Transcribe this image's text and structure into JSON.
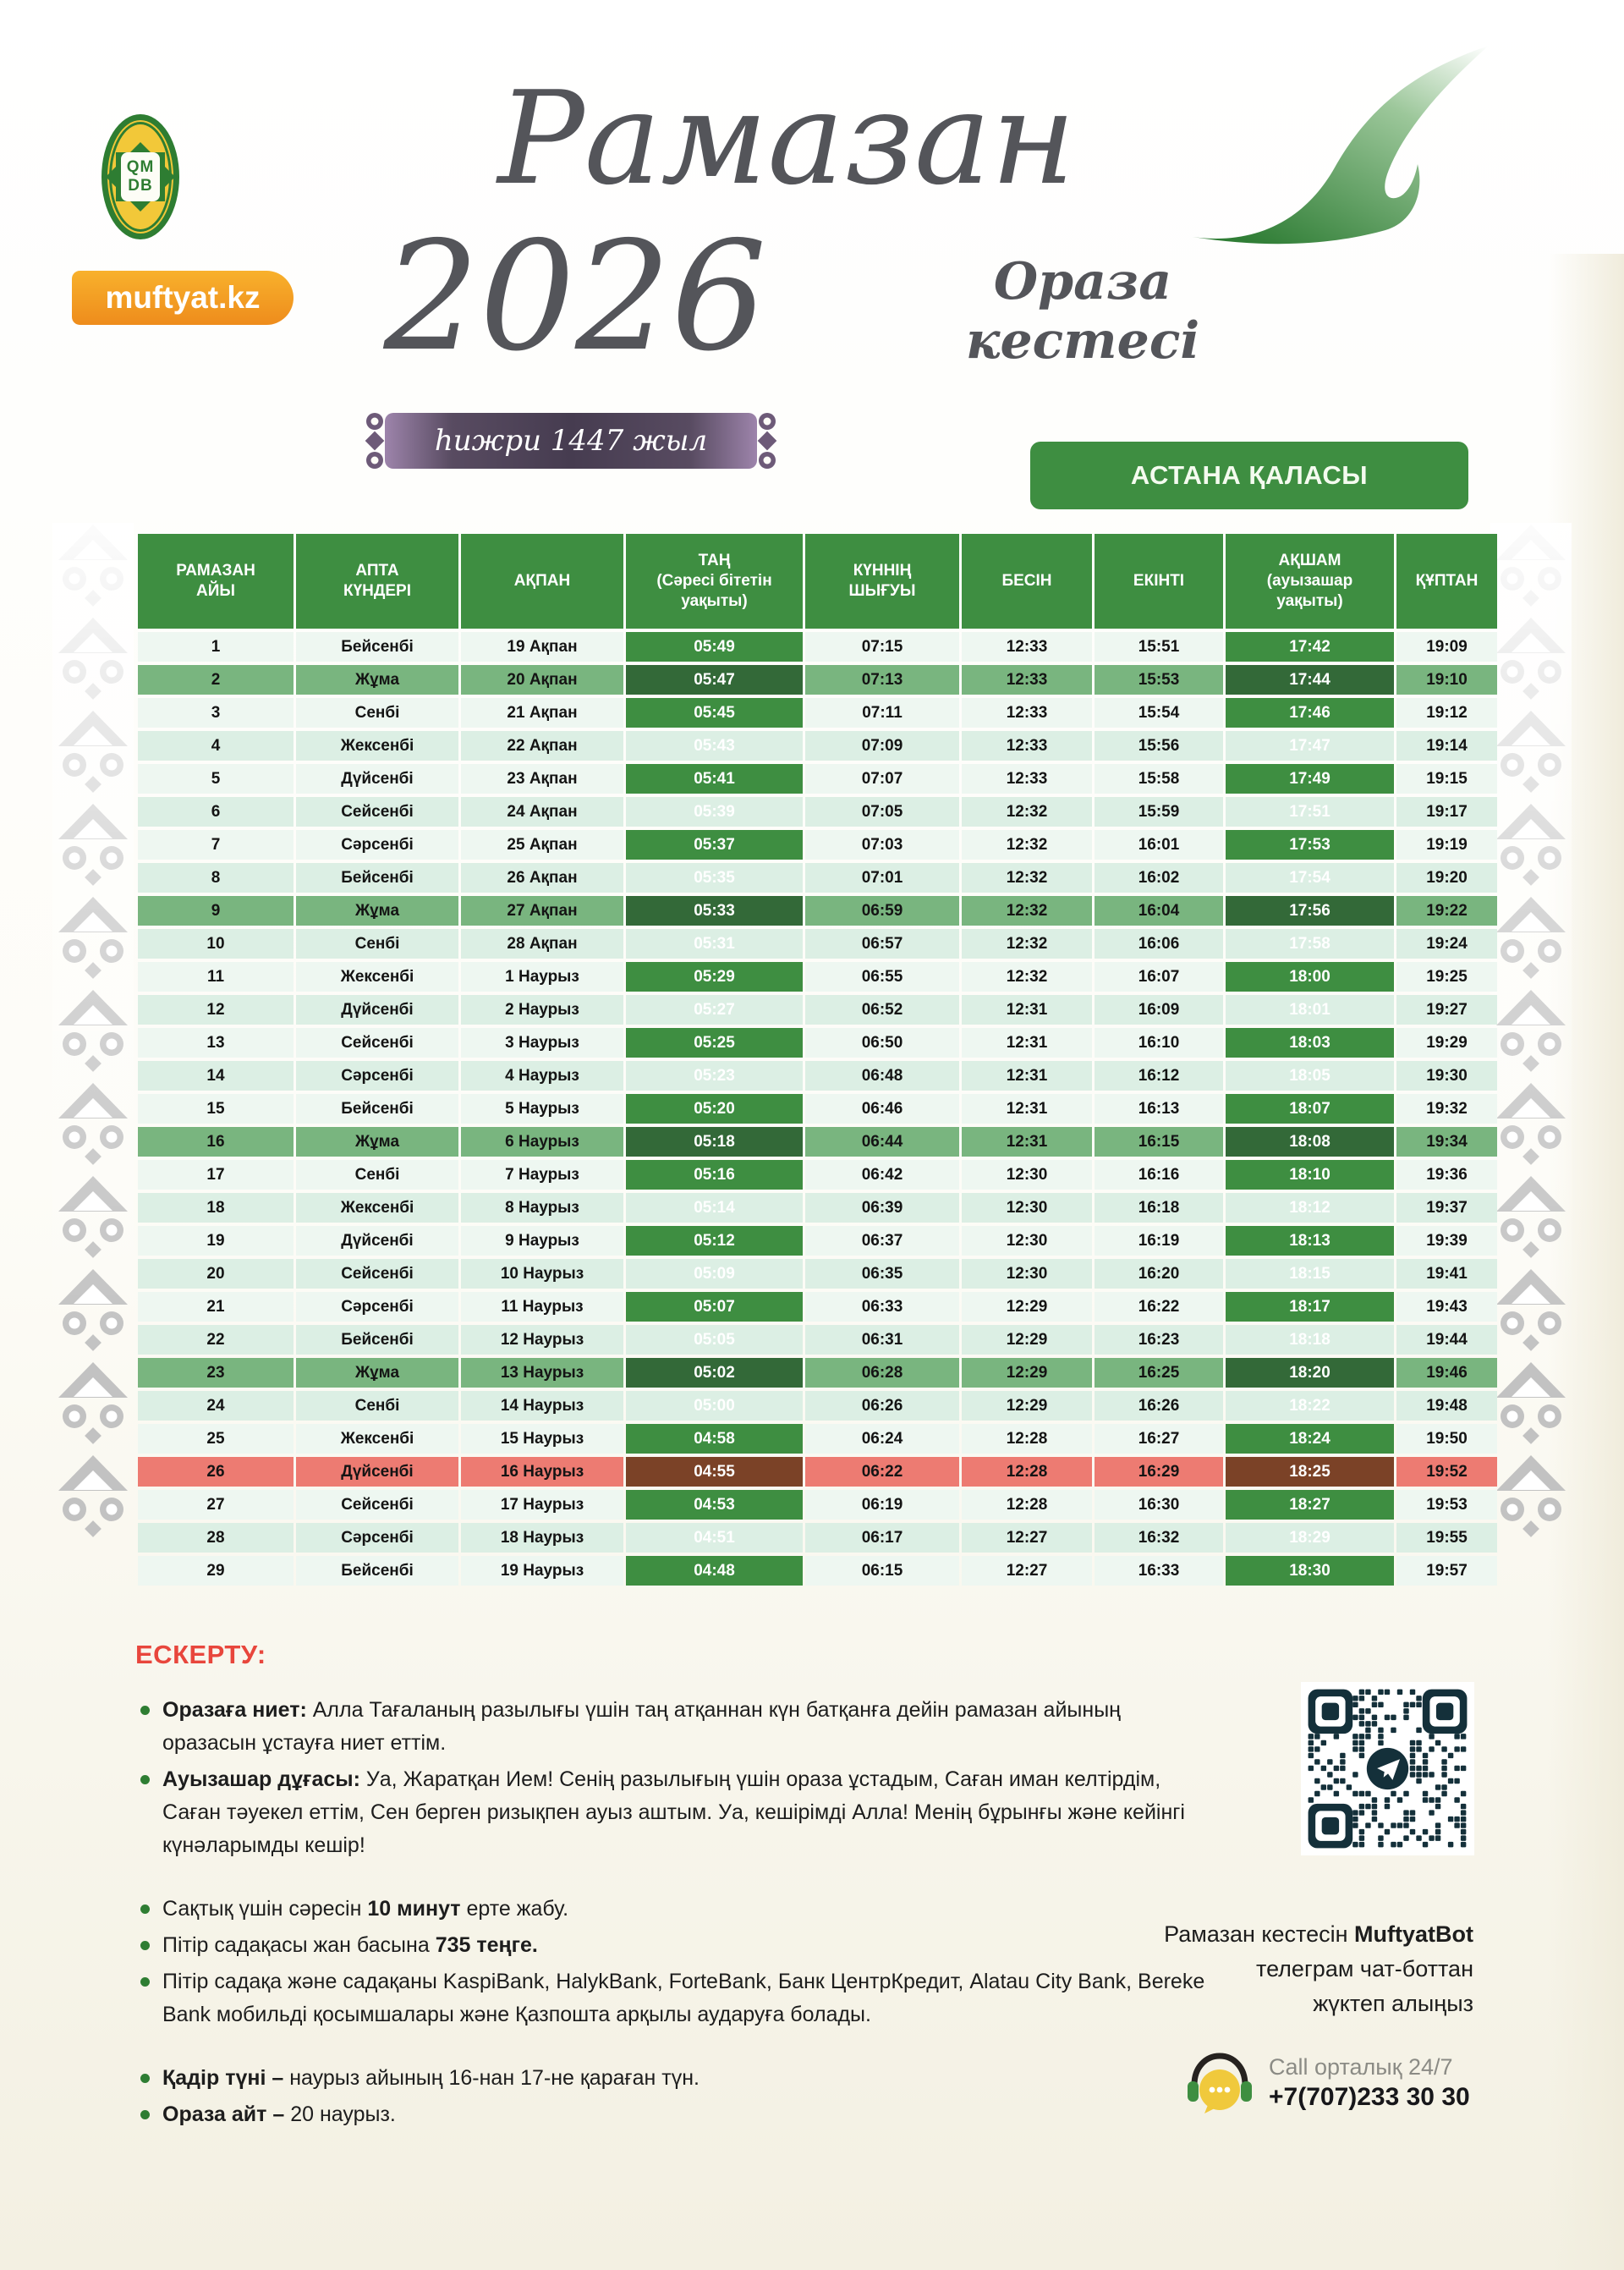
{
  "header": {
    "logo_line1": "QM",
    "logo_line2": "DB",
    "site_badge": "muftyat.kz",
    "title_script": "Рамазан",
    "year": "2026",
    "subtitle_script": "Ораза кестесі",
    "hijri_badge": "һижри 1447 жыл",
    "city_button": "АСТАНА ҚАЛАСЫ"
  },
  "table": {
    "columns": [
      "РАМАЗАН\nАЙЫ",
      "АПТА\nКҮНДЕРІ",
      "АҚПАН",
      "ТАҢ\n(Сәресі бітетін\nуақыты)",
      "КҮННІҢ\nШЫҒУЫ",
      "БЕСІН",
      "ЕКІНТІ",
      "АҚШАМ\n(ауызашар\nуақыты)",
      "ҚҰПТАН"
    ],
    "rows": [
      {
        "day": "1",
        "weekday": "Бейсенбі",
        "date": "19 Ақпан",
        "tan": "05:49",
        "sunrise": "07:15",
        "besin": "12:33",
        "ekinti": "15:51",
        "aqsham": "17:42",
        "quptan": "19:09",
        "hl": ""
      },
      {
        "day": "2",
        "weekday": "Жұма",
        "date": "20 Ақпан",
        "tan": "05:47",
        "sunrise": "07:13",
        "besin": "12:33",
        "ekinti": "15:53",
        "aqsham": "17:44",
        "quptan": "19:10",
        "hl": "jumma"
      },
      {
        "day": "3",
        "weekday": "Сенбі",
        "date": "21 Ақпан",
        "tan": "05:45",
        "sunrise": "07:11",
        "besin": "12:33",
        "ekinti": "15:54",
        "aqsham": "17:46",
        "quptan": "19:12",
        "hl": ""
      },
      {
        "day": "4",
        "weekday": "Жексенбі",
        "date": "22 Ақпан",
        "tan": "05:43",
        "sunrise": "07:09",
        "besin": "12:33",
        "ekinti": "15:56",
        "aqsham": "17:47",
        "quptan": "19:14",
        "hl": ""
      },
      {
        "day": "5",
        "weekday": "Дүйсенбі",
        "date": "23 Ақпан",
        "tan": "05:41",
        "sunrise": "07:07",
        "besin": "12:33",
        "ekinti": "15:58",
        "aqsham": "17:49",
        "quptan": "19:15",
        "hl": ""
      },
      {
        "day": "6",
        "weekday": "Сейсенбі",
        "date": "24 Ақпан",
        "tan": "05:39",
        "sunrise": "07:05",
        "besin": "12:32",
        "ekinti": "15:59",
        "aqsham": "17:51",
        "quptan": "19:17",
        "hl": ""
      },
      {
        "day": "7",
        "weekday": "Сәрсенбі",
        "date": "25 Ақпан",
        "tan": "05:37",
        "sunrise": "07:03",
        "besin": "12:32",
        "ekinti": "16:01",
        "aqsham": "17:53",
        "quptan": "19:19",
        "hl": ""
      },
      {
        "day": "8",
        "weekday": "Бейсенбі",
        "date": "26 Ақпан",
        "tan": "05:35",
        "sunrise": "07:01",
        "besin": "12:32",
        "ekinti": "16:02",
        "aqsham": "17:54",
        "quptan": "19:20",
        "hl": ""
      },
      {
        "day": "9",
        "weekday": "Жұма",
        "date": "27 Ақпан",
        "tan": "05:33",
        "sunrise": "06:59",
        "besin": "12:32",
        "ekinti": "16:04",
        "aqsham": "17:56",
        "quptan": "19:22",
        "hl": "jumma"
      },
      {
        "day": "10",
        "weekday": "Сенбі",
        "date": "28 Ақпан",
        "tan": "05:31",
        "sunrise": "06:57",
        "besin": "12:32",
        "ekinti": "16:06",
        "aqsham": "17:58",
        "quptan": "19:24",
        "hl": ""
      },
      {
        "day": "11",
        "weekday": "Жексенбі",
        "date": "1 Наурыз",
        "tan": "05:29",
        "sunrise": "06:55",
        "besin": "12:32",
        "ekinti": "16:07",
        "aqsham": "18:00",
        "quptan": "19:25",
        "hl": ""
      },
      {
        "day": "12",
        "weekday": "Дүйсенбі",
        "date": "2 Наурыз",
        "tan": "05:27",
        "sunrise": "06:52",
        "besin": "12:31",
        "ekinti": "16:09",
        "aqsham": "18:01",
        "quptan": "19:27",
        "hl": ""
      },
      {
        "day": "13",
        "weekday": "Сейсенбі",
        "date": "3 Наурыз",
        "tan": "05:25",
        "sunrise": "06:50",
        "besin": "12:31",
        "ekinti": "16:10",
        "aqsham": "18:03",
        "quptan": "19:29",
        "hl": ""
      },
      {
        "day": "14",
        "weekday": "Сәрсенбі",
        "date": "4 Наурыз",
        "tan": "05:23",
        "sunrise": "06:48",
        "besin": "12:31",
        "ekinti": "16:12",
        "aqsham": "18:05",
        "quptan": "19:30",
        "hl": ""
      },
      {
        "day": "15",
        "weekday": "Бейсенбі",
        "date": "5 Наурыз",
        "tan": "05:20",
        "sunrise": "06:46",
        "besin": "12:31",
        "ekinti": "16:13",
        "aqsham": "18:07",
        "quptan": "19:32",
        "hl": ""
      },
      {
        "day": "16",
        "weekday": "Жұма",
        "date": "6 Наурыз",
        "tan": "05:18",
        "sunrise": "06:44",
        "besin": "12:31",
        "ekinti": "16:15",
        "aqsham": "18:08",
        "quptan": "19:34",
        "hl": "jumma"
      },
      {
        "day": "17",
        "weekday": "Сенбі",
        "date": "7 Наурыз",
        "tan": "05:16",
        "sunrise": "06:42",
        "besin": "12:30",
        "ekinti": "16:16",
        "aqsham": "18:10",
        "quptan": "19:36",
        "hl": ""
      },
      {
        "day": "18",
        "weekday": "Жексенбі",
        "date": "8 Наурыз",
        "tan": "05:14",
        "sunrise": "06:39",
        "besin": "12:30",
        "ekinti": "16:18",
        "aqsham": "18:12",
        "quptan": "19:37",
        "hl": ""
      },
      {
        "day": "19",
        "weekday": "Дүйсенбі",
        "date": "9 Наурыз",
        "tan": "05:12",
        "sunrise": "06:37",
        "besin": "12:30",
        "ekinti": "16:19",
        "aqsham": "18:13",
        "quptan": "19:39",
        "hl": ""
      },
      {
        "day": "20",
        "weekday": "Сейсенбі",
        "date": "10 Наурыз",
        "tan": "05:09",
        "sunrise": "06:35",
        "besin": "12:30",
        "ekinti": "16:20",
        "aqsham": "18:15",
        "quptan": "19:41",
        "hl": ""
      },
      {
        "day": "21",
        "weekday": "Сәрсенбі",
        "date": "11 Наурыз",
        "tan": "05:07",
        "sunrise": "06:33",
        "besin": "12:29",
        "ekinti": "16:22",
        "aqsham": "18:17",
        "quptan": "19:43",
        "hl": ""
      },
      {
        "day": "22",
        "weekday": "Бейсенбі",
        "date": "12 Наурыз",
        "tan": "05:05",
        "sunrise": "06:31",
        "besin": "12:29",
        "ekinti": "16:23",
        "aqsham": "18:18",
        "quptan": "19:44",
        "hl": ""
      },
      {
        "day": "23",
        "weekday": "Жұма",
        "date": "13 Наурыз",
        "tan": "05:02",
        "sunrise": "06:28",
        "besin": "12:29",
        "ekinti": "16:25",
        "aqsham": "18:20",
        "quptan": "19:46",
        "hl": "jumma"
      },
      {
        "day": "24",
        "weekday": "Сенбі",
        "date": "14 Наурыз",
        "tan": "05:00",
        "sunrise": "06:26",
        "besin": "12:29",
        "ekinti": "16:26",
        "aqsham": "18:22",
        "quptan": "19:48",
        "hl": ""
      },
      {
        "day": "25",
        "weekday": "Жексенбі",
        "date": "15 Наурыз",
        "tan": "04:58",
        "sunrise": "06:24",
        "besin": "12:28",
        "ekinti": "16:27",
        "aqsham": "18:24",
        "quptan": "19:50",
        "hl": ""
      },
      {
        "day": "26",
        "weekday": "Дүйсенбі",
        "date": "16 Наурыз",
        "tan": "04:55",
        "sunrise": "06:22",
        "besin": "12:28",
        "ekinti": "16:29",
        "aqsham": "18:25",
        "quptan": "19:52",
        "hl": "qadir"
      },
      {
        "day": "27",
        "weekday": "Сейсенбі",
        "date": "17 Наурыз",
        "tan": "04:53",
        "sunrise": "06:19",
        "besin": "12:28",
        "ekinti": "16:30",
        "aqsham": "18:27",
        "quptan": "19:53",
        "hl": ""
      },
      {
        "day": "28",
        "weekday": "Сәрсенбі",
        "date": "18 Наурыз",
        "tan": "04:51",
        "sunrise": "06:17",
        "besin": "12:27",
        "ekinti": "16:32",
        "aqsham": "18:29",
        "quptan": "19:55",
        "hl": ""
      },
      {
        "day": "29",
        "weekday": "Бейсенбі",
        "date": "19 Наурыз",
        "tan": "04:48",
        "sunrise": "06:15",
        "besin": "12:27",
        "ekinti": "16:33",
        "aqsham": "18:30",
        "quptan": "19:57",
        "hl": ""
      }
    ]
  },
  "notes": {
    "heading": "ЕСКЕРТУ:",
    "items": [
      {
        "gap_before": false,
        "segments": [
          {
            "text": "Оразаға ниет: ",
            "bold": true
          },
          {
            "text": "Алла Тағаланың разылығы үшін таң атқаннан күн батқанға дейін рамазан айының оразасын ұстауға ниет еттім.",
            "bold": false
          }
        ]
      },
      {
        "gap_before": false,
        "segments": [
          {
            "text": "Ауызашар дұғасы: ",
            "bold": true
          },
          {
            "text": "Уа, Жаратқан Ием! Сенің разылығың үшін ораза ұстадым, Саған иман келтірдім, Саған тәуекел еттім, Сен берген ризықпен ауыз аштым. Уа, кешірімді Алла! Менің бұрынғы және кейінгі күнәларымды кешір!",
            "bold": false
          }
        ]
      },
      {
        "gap_before": true,
        "segments": [
          {
            "text": "Сақтық үшін сәресін ",
            "bold": false
          },
          {
            "text": "10 минут",
            "bold": true
          },
          {
            "text": " ерте жабу.",
            "bold": false
          }
        ]
      },
      {
        "gap_before": false,
        "segments": [
          {
            "text": "Пітір садақасы жан басына ",
            "bold": false
          },
          {
            "text": "735 теңге.",
            "bold": true
          }
        ]
      },
      {
        "gap_before": false,
        "segments": [
          {
            "text": "Пітір садақа және садақаны KaspiBank, HalykBank, ForteBank, Банк ЦентрКредит, Alatau City Bank, Bereke Bank мобильді қосымшалары және Қазпошта арқылы аударуға болады.",
            "bold": false
          }
        ]
      },
      {
        "gap_before": true,
        "segments": [
          {
            "text": "Қадір түні – ",
            "bold": true
          },
          {
            "text": "наурыз айының 16-нан 17-не қараған түн.",
            "bold": false
          }
        ]
      },
      {
        "gap_before": false,
        "segments": [
          {
            "text": "Ораза айт – ",
            "bold": true
          },
          {
            "text": "20 наурыз.",
            "bold": false
          }
        ]
      }
    ]
  },
  "qr_caption": {
    "lines": [
      [
        {
          "text": "Рамазан кестесін ",
          "bold": false
        },
        {
          "text": "MuftyatBot",
          "bold": true
        }
      ],
      [
        {
          "text": "телеграм чат-боттан",
          "bold": false
        }
      ],
      [
        {
          "text": "жүктеп алыңыз",
          "bold": false
        }
      ]
    ]
  },
  "call_center": {
    "label": "Call орталық 24/7",
    "phone": "+7(707)233 30 30"
  },
  "colors": {
    "header_green": "#3e8e41",
    "jumma_row_green": "#79b57f",
    "jumma_time_green": "#336938",
    "qadir_row_red": "#ed7b72",
    "qadir_time_brown": "#7b4227",
    "row_light": "#eef7f1",
    "row_mint": "#dcefe4",
    "note_heading_red": "#e8463c",
    "badge_orange": "#f49b1d",
    "hijri_purple": "#463c50"
  }
}
